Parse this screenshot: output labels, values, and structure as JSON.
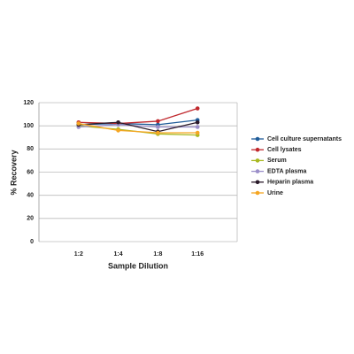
{
  "chart_data": {
    "type": "line",
    "x_label": "Sample Dilution",
    "y_label": "% Recovery",
    "categories": [
      "1:2",
      "1:4",
      "1:8",
      "1:16"
    ],
    "ylim": [
      0,
      120
    ],
    "yticks": [
      0,
      20,
      40,
      60,
      80,
      100,
      120
    ],
    "grid": true,
    "legend": "right",
    "series": [
      {
        "name": "Cell culture supernatants",
        "color": "#1f5c99",
        "values": [
          101,
          102,
          101,
          105
        ]
      },
      {
        "name": "Cell lysates",
        "color": "#c0282d",
        "values": [
          103,
          102,
          104,
          115
        ]
      },
      {
        "name": "Serum",
        "color": "#a8b820",
        "values": [
          100,
          97,
          93,
          92
        ]
      },
      {
        "name": "EDTA plasma",
        "color": "#9b8fc9",
        "values": [
          99,
          101,
          99,
          99
        ]
      },
      {
        "name": "Heparin plasma",
        "color": "#2a1a2a",
        "values": [
          101,
          103,
          95,
          103
        ]
      },
      {
        "name": "Urine",
        "color": "#f5a623",
        "values": [
          102,
          96,
          94,
          94
        ]
      }
    ]
  }
}
